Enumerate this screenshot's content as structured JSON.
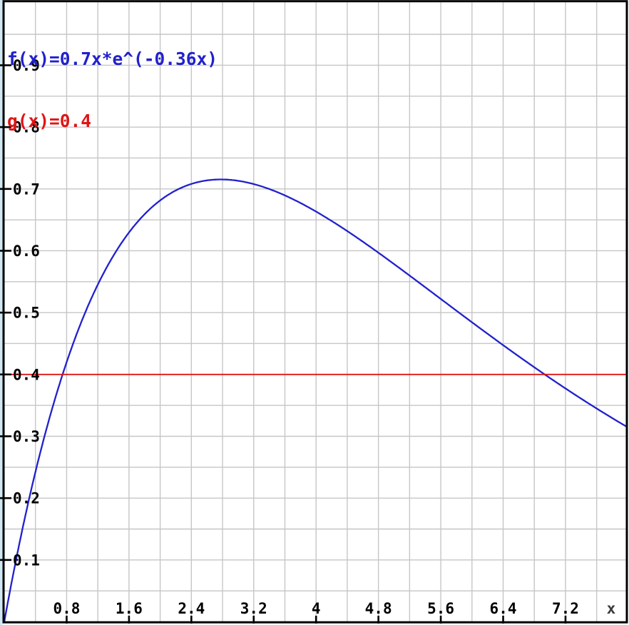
{
  "page": {
    "background": "#ffffff",
    "left_margin_color": "#cfe8f4",
    "border_color": "#000000",
    "grid_color": "#c6c6c6",
    "tick_color": "#000000",
    "tick_label_color": "#000000",
    "x_axis_title_color": "#3c3c3c"
  },
  "legend": {
    "position": "top-left",
    "entries": [
      {
        "label": "f(x)=0.7x*e^(-0.36x)",
        "color": "#2121cd"
      },
      {
        "label": "g(x)=0.4",
        "color": "#e01515"
      }
    ]
  },
  "chart_data": {
    "type": "line",
    "title": "",
    "xlabel": "x",
    "ylabel": "",
    "grid": true,
    "x_range": [
      0,
      8.03
    ],
    "y_range": [
      0,
      1.005
    ],
    "x_grid_step": 0.4,
    "y_grid_step": 0.05,
    "x_tick_values": [
      0.8,
      1.6,
      2.4,
      3.2,
      4.0,
      4.8,
      5.6,
      6.4,
      7.2
    ],
    "x_tick_labels": [
      "0.8",
      "1.6",
      "2.4",
      "3.2",
      "4",
      "4.8",
      "5.6",
      "6.4",
      "7.2"
    ],
    "y_tick_values": [
      0.1,
      0.2,
      0.3,
      0.4,
      0.5,
      0.6,
      0.7,
      0.8,
      0.9
    ],
    "y_tick_labels": [
      "0.1",
      "0.2",
      "0.3",
      "0.4",
      "0.5",
      "0.6",
      "0.7",
      "0.8",
      "0.9"
    ],
    "series": [
      {
        "name": "f(x)=0.7x*e^(-0.36x)",
        "type": "function",
        "color": "#2121cd",
        "params": {
          "a": 0.7,
          "k": -0.36
        },
        "sample_points": [
          [
            0,
            0
          ],
          [
            0.5,
            0.292
          ],
          [
            1,
            0.488
          ],
          [
            1.5,
            0.612
          ],
          [
            2,
            0.681
          ],
          [
            2.5,
            0.711
          ],
          [
            2.78,
            0.715
          ],
          [
            3,
            0.713
          ],
          [
            3.5,
            0.695
          ],
          [
            4,
            0.663
          ],
          [
            4.5,
            0.623
          ],
          [
            5,
            0.579
          ],
          [
            5.5,
            0.532
          ],
          [
            6,
            0.484
          ],
          [
            6.5,
            0.438
          ],
          [
            7,
            0.394
          ],
          [
            7.5,
            0.353
          ],
          [
            8,
            0.314
          ]
        ]
      },
      {
        "name": "g(x)=0.4",
        "type": "constant",
        "color": "#e01515",
        "value": 0.4,
        "sample_points": [
          [
            0,
            0.4
          ],
          [
            8,
            0.4
          ]
        ]
      }
    ]
  }
}
